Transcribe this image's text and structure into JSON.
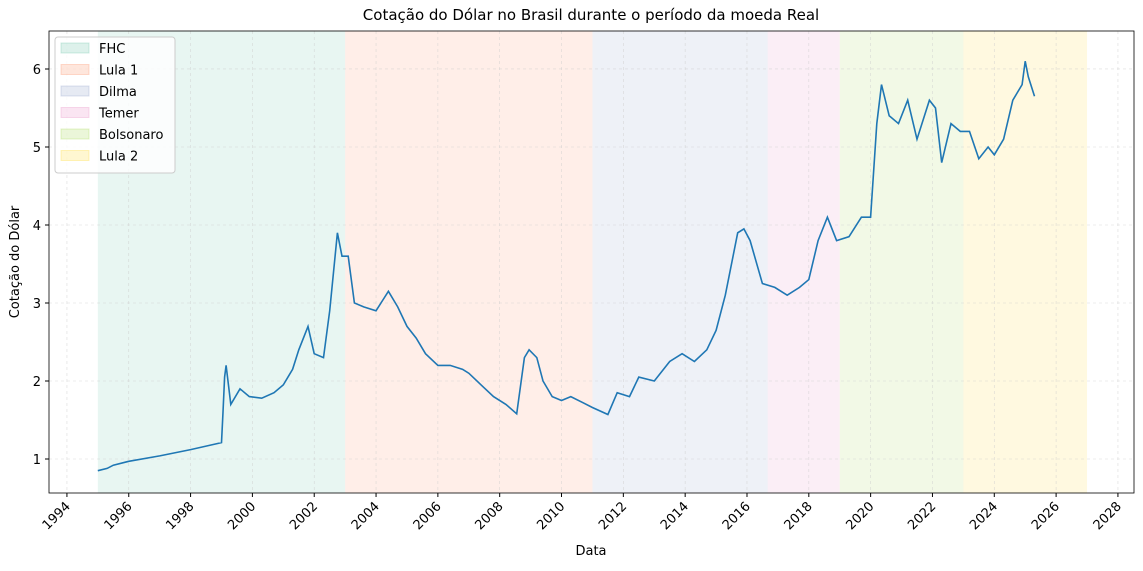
{
  "chart_data": {
    "type": "line",
    "title": "Cotação do Dólar no Brasil durante o período da moeda Real",
    "x_label": "Data",
    "y_label": "Cotação do Dólar",
    "series": [
      {
        "color": "#1f77b4",
        "x": [
          1995.0,
          1995.3,
          1995.5,
          1996.0,
          1997.0,
          1998.0,
          1999.0,
          1999.05,
          1999.1,
          1999.15,
          1999.3,
          1999.6,
          1999.9,
          2000.3,
          2000.7,
          2001.0,
          2001.3,
          2001.5,
          2001.8,
          2002.0,
          2002.3,
          2002.5,
          2002.75,
          2002.9,
          2003.1,
          2003.3,
          2003.6,
          2004.0,
          2004.4,
          2004.7,
          2005.0,
          2005.3,
          2005.6,
          2006.0,
          2006.4,
          2006.8,
          2007.0,
          2007.4,
          2007.8,
          2008.2,
          2008.55,
          2008.8,
          2008.95,
          2009.2,
          2009.4,
          2009.7,
          2010.0,
          2010.3,
          2010.7,
          2011.0,
          2011.5,
          2011.8,
          2012.2,
          2012.5,
          2013.0,
          2013.5,
          2013.9,
          2014.3,
          2014.7,
          2015.0,
          2015.3,
          2015.7,
          2015.9,
          2016.1,
          2016.5,
          2016.9,
          2017.3,
          2017.7,
          2018.0,
          2018.3,
          2018.6,
          2018.9,
          2019.3,
          2019.7,
          2020.0,
          2020.2,
          2020.35,
          2020.6,
          2020.9,
          2021.2,
          2021.5,
          2021.9,
          2022.1,
          2022.3,
          2022.6,
          2022.9,
          2023.2,
          2023.5,
          2023.8,
          2024.0,
          2024.3,
          2024.6,
          2024.9,
          2025.0,
          2025.1,
          2025.3
        ],
        "values": [
          0.85,
          0.88,
          0.92,
          0.97,
          1.04,
          1.12,
          1.21,
          1.6,
          2.05,
          2.2,
          1.7,
          1.9,
          1.8,
          1.78,
          1.85,
          1.95,
          2.15,
          2.4,
          2.7,
          2.35,
          2.3,
          2.9,
          3.9,
          3.6,
          3.6,
          3.0,
          2.95,
          2.9,
          3.15,
          2.95,
          2.7,
          2.55,
          2.35,
          2.2,
          2.2,
          2.15,
          2.1,
          1.95,
          1.8,
          1.7,
          1.58,
          2.3,
          2.4,
          2.3,
          2.0,
          1.8,
          1.75,
          1.8,
          1.72,
          1.66,
          1.57,
          1.85,
          1.8,
          2.05,
          2.0,
          2.25,
          2.35,
          2.25,
          2.4,
          2.65,
          3.1,
          3.9,
          3.95,
          3.8,
          3.25,
          3.2,
          3.1,
          3.2,
          3.3,
          3.8,
          4.1,
          3.8,
          3.85,
          4.1,
          4.1,
          5.3,
          5.8,
          5.4,
          5.3,
          5.6,
          5.1,
          5.6,
          5.5,
          4.8,
          5.3,
          5.2,
          5.2,
          4.85,
          5.0,
          4.9,
          5.1,
          5.6,
          5.8,
          6.1,
          5.9,
          5.65
        ]
      }
    ],
    "spans": [
      {
        "name": "FHC",
        "start": 1995.0,
        "end": 2003.0,
        "color": "#66c2a5"
      },
      {
        "name": "Lula 1",
        "start": 2003.0,
        "end": 2011.0,
        "color": "#fc8d62"
      },
      {
        "name": "Dilma",
        "start": 2011.0,
        "end": 2016.67,
        "color": "#8da0cb"
      },
      {
        "name": "Temer",
        "start": 2016.67,
        "end": 2019.0,
        "color": "#e78ac3"
      },
      {
        "name": "Bolsonaro",
        "start": 2019.0,
        "end": 2023.0,
        "color": "#a6d854"
      },
      {
        "name": "Lula 2",
        "start": 2023.0,
        "end": 2027.0,
        "color": "#ffd92f"
      }
    ],
    "span_opacity": 0.15,
    "xlim": [
      1993.42,
      2028.52
    ],
    "xticks": [
      1994,
      1996,
      1998,
      2000,
      2002,
      2004,
      2006,
      2008,
      2010,
      2012,
      2014,
      2016,
      2018,
      2020,
      2022,
      2024,
      2026,
      2028
    ],
    "ylim": [
      0.564,
      6.487
    ],
    "yticks": [
      1,
      2,
      3,
      4,
      5,
      6
    ],
    "grid": true,
    "legend": "upper-left"
  }
}
